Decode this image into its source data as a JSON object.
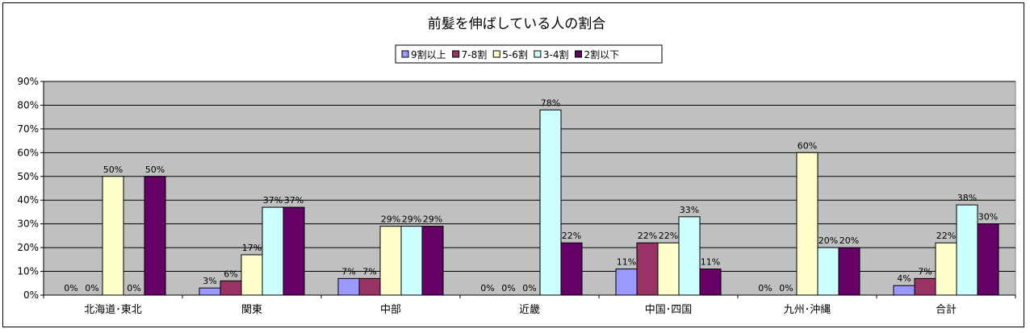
{
  "chart_data": {
    "type": "bar",
    "title": "前髪を伸ばしている人の割合",
    "categories": [
      "北海道･東北",
      "関東",
      "中部",
      "近畿",
      "中国･四国",
      "九州･沖縄",
      "合計"
    ],
    "series": [
      {
        "name": "9割以上",
        "color": "#9999ff",
        "values": [
          0,
          3,
          7,
          0,
          11,
          0,
          4
        ]
      },
      {
        "name": "7-8割",
        "color": "#993366",
        "values": [
          0,
          6,
          7,
          0,
          22,
          0,
          7
        ]
      },
      {
        "name": "5-6割",
        "color": "#ffffcc",
        "values": [
          50,
          17,
          29,
          0,
          22,
          60,
          22
        ]
      },
      {
        "name": "3-4割",
        "color": "#ccffff",
        "values": [
          0,
          37,
          29,
          78,
          33,
          20,
          38
        ]
      },
      {
        "name": "2割以下",
        "color": "#660066",
        "values": [
          50,
          37,
          29,
          22,
          11,
          20,
          30
        ]
      }
    ],
    "data_labels": [
      [
        "0%",
        "0%",
        "50%",
        "0%",
        "50%"
      ],
      [
        "3%",
        "6%",
        "17%",
        "37%",
        "37%"
      ],
      [
        "7%",
        "7%",
        "29%",
        "29%",
        "29%"
      ],
      [
        "0%",
        "0%",
        "0%",
        "78%",
        "22%"
      ],
      [
        "11%",
        "22%",
        "22%",
        "33%",
        "11%"
      ],
      [
        "0%",
        "0%",
        "60%",
        "20%",
        "20%"
      ],
      [
        "4%",
        "7%",
        "22%",
        "38%",
        "30%"
      ]
    ],
    "yticks": [
      "0%",
      "10%",
      "20%",
      "30%",
      "40%",
      "50%",
      "60%",
      "70%",
      "80%",
      "90%"
    ],
    "ylim": [
      0,
      90
    ],
    "grid": true,
    "legend_position": "top",
    "plot_background": "#c0c0c0"
  }
}
